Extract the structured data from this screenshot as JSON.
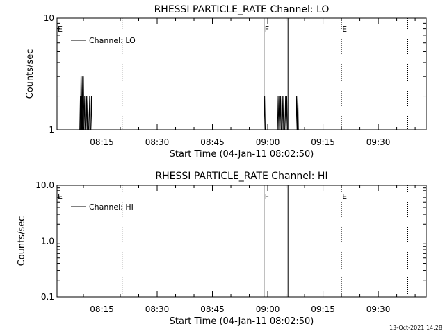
{
  "footer_date": "13-Oct-2021 14:28",
  "chart_data": [
    {
      "type": "line",
      "title": "RHESSI PARTICLE_RATE Channel: LO",
      "xlabel": "Start Time (04-Jan-11 08:02:50)",
      "ylabel": "Counts/sec",
      "y_scale": "log",
      "ylim": [
        1,
        10
      ],
      "y_ticks": [
        {
          "v": 1,
          "label": "1"
        },
        {
          "v": 10,
          "label": "10"
        }
      ],
      "xlim": [
        "08:02:50",
        "09:43:00"
      ],
      "x_ticks": [
        "08:15",
        "08:30",
        "08:45",
        "09:00",
        "09:15",
        "09:30"
      ],
      "legend": {
        "position": "top-left",
        "entries": [
          "Channel: LO"
        ]
      },
      "grid": false,
      "series": [
        {
          "name": "Channel: LO",
          "x": [
            "08:08:30",
            "08:09:10",
            "08:09:20",
            "08:09:30",
            "08:09:40",
            "08:09:50",
            "08:10:00",
            "08:10:10",
            "08:10:20",
            "08:10:30",
            "08:10:40",
            "08:10:50",
            "08:11:00",
            "08:11:10",
            "08:11:20",
            "08:11:30",
            "08:11:40",
            "08:11:50",
            "08:12:00",
            "08:12:10",
            "08:12:20",
            "08:59:00",
            "08:59:10",
            "08:59:20",
            "08:59:30",
            "09:02:40",
            "09:02:50",
            "09:03:00",
            "09:03:10",
            "09:03:20",
            "09:03:30",
            "09:03:40",
            "09:03:50",
            "09:04:00",
            "09:04:10",
            "09:04:20",
            "09:04:30",
            "09:04:40",
            "09:04:50",
            "09:05:00",
            "09:05:10",
            "09:05:20",
            "09:05:30",
            "09:07:40",
            "09:07:50",
            "09:08:00",
            "09:08:10",
            "09:08:20"
          ],
          "y": [
            1,
            2,
            3,
            2,
            3,
            2,
            3,
            1,
            2,
            1,
            1,
            2,
            1,
            2,
            1,
            1,
            2,
            1,
            1,
            2,
            1,
            1,
            2,
            1,
            1,
            1,
            2,
            1,
            2,
            1,
            2,
            1,
            1,
            2,
            1,
            2,
            1,
            1,
            2,
            1,
            2,
            1,
            1,
            1,
            2,
            1,
            2,
            1
          ]
        }
      ],
      "annotations": [
        {
          "text": "E",
          "x": "08:02:50"
        },
        {
          "text": "F",
          "x": "08:59:00"
        },
        {
          "text": "E",
          "x": "09:20:00"
        }
      ],
      "flags_dotted": [
        "08:20:30",
        "09:20:00",
        "09:38:00"
      ],
      "flags_solid": [
        "08:59:00",
        "09:05:30"
      ]
    },
    {
      "type": "line",
      "title": "RHESSI PARTICLE_RATE Channel: HI",
      "xlabel": "Start Time (04-Jan-11 08:02:50)",
      "ylabel": "Counts/sec",
      "y_scale": "log",
      "ylim": [
        0.1,
        10
      ],
      "y_ticks": [
        {
          "v": 0.1,
          "label": "0.1"
        },
        {
          "v": 1,
          "label": "1.0"
        },
        {
          "v": 10,
          "label": "10.0"
        }
      ],
      "xlim": [
        "08:02:50",
        "09:43:00"
      ],
      "x_ticks": [
        "08:15",
        "08:30",
        "08:45",
        "09:00",
        "09:15",
        "09:30"
      ],
      "legend": {
        "position": "top-left",
        "entries": [
          "Channel: HI"
        ]
      },
      "grid": false,
      "series": [
        {
          "name": "Channel: HI",
          "x": [],
          "y": []
        }
      ],
      "annotations": [
        {
          "text": "E",
          "x": "08:02:50"
        },
        {
          "text": "F",
          "x": "08:59:00"
        },
        {
          "text": "E",
          "x": "09:20:00"
        }
      ],
      "flags_dotted": [
        "08:20:30",
        "09:20:00",
        "09:38:00"
      ],
      "flags_solid": [
        "08:59:00",
        "09:05:30"
      ]
    }
  ]
}
